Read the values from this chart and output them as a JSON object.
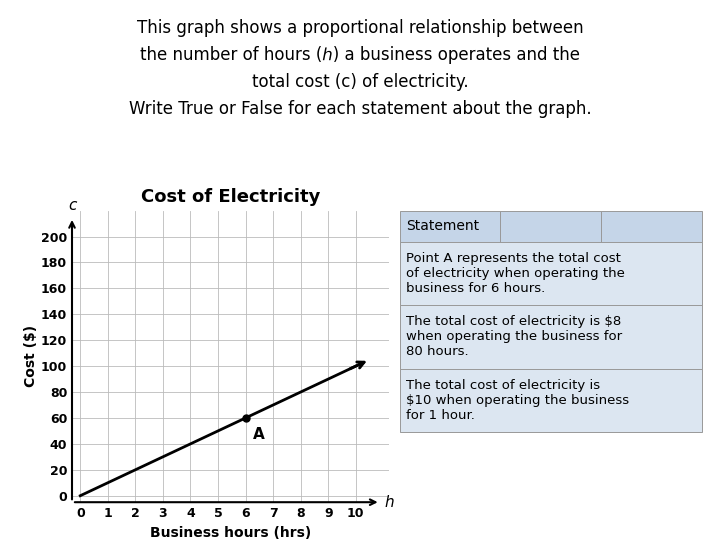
{
  "title_line1": "This graph shows a proportional relationship between",
  "title_line2": "the number of hours (ℎ) a business operates and the",
  "title_line3": "total cost (c) of electricity.",
  "title_line4": "Write True or False for each statement about the graph.",
  "chart_title": "Cost of Electricity",
  "xlabel": "Business hours (hrs)",
  "ylabel": "Cost ($)",
  "x_axis_label_end": "h",
  "y_axis_label_end": "c",
  "xlim": [
    0,
    11.2
  ],
  "ylim": [
    0,
    220
  ],
  "xticks": [
    0,
    1,
    2,
    3,
    4,
    5,
    6,
    7,
    8,
    9,
    10
  ],
  "yticks": [
    0,
    20,
    40,
    60,
    80,
    100,
    120,
    140,
    160,
    180,
    200
  ],
  "line_x": [
    0,
    10.5
  ],
  "line_y": [
    0,
    105
  ],
  "point_A_x": 6,
  "point_A_y": 60,
  "point_label": "A",
  "statement_header": "Statement",
  "statements": [
    "Point A represents the total cost\nof electricity when operating the\nbusiness for 6 hours.",
    "The total cost of electricity is $8\nwhen operating the business for\n80 hours.",
    "The total cost of electricity is\n$10 when operating the business\nfor 1 hour."
  ],
  "bg_color": "#ffffff",
  "table_header_color": "#c5d5e8",
  "table_row_color": "#dce6f1",
  "line_color": "#000000",
  "grid_color": "#bbbbbb"
}
